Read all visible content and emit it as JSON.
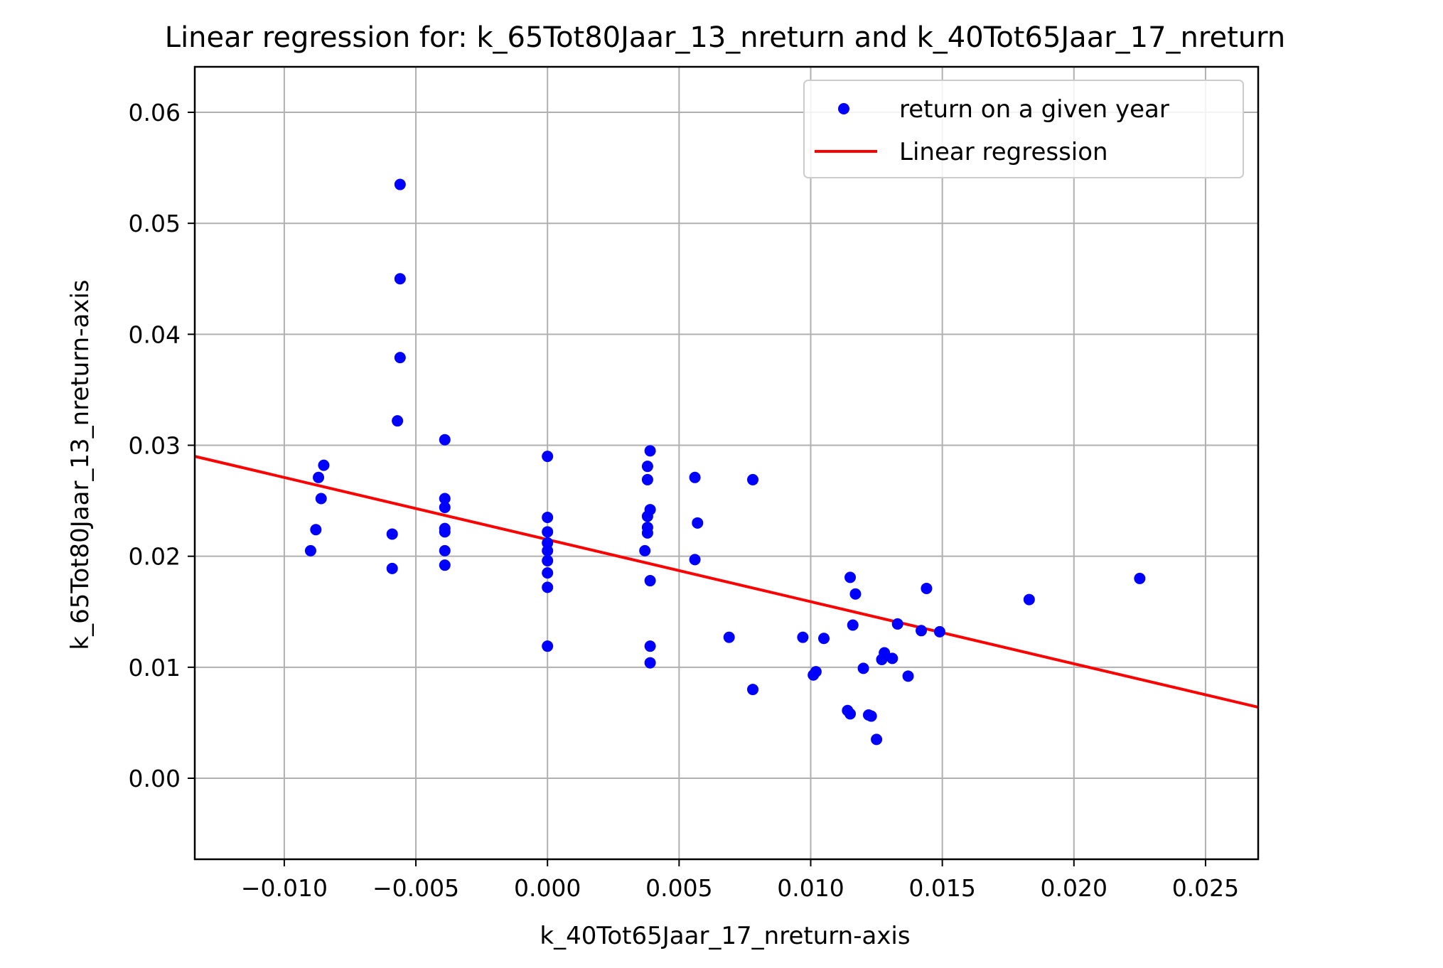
{
  "chart_data": {
    "type": "scatter",
    "title": "Linear regression for: k_65Tot80Jaar_13_nreturn and k_40Tot65Jaar_17_nreturn",
    "xlabel": "k_40Tot65Jaar_17_nreturn-axis",
    "ylabel": "k_65Tot80Jaar_13_nreturn-axis",
    "xlim": [
      -0.0134,
      0.027
    ],
    "ylim": [
      -0.0073,
      0.0641
    ],
    "xticks": [
      -0.01,
      -0.005,
      0.0,
      0.005,
      0.01,
      0.015,
      0.02,
      0.025
    ],
    "xtick_labels": [
      "−0.010",
      "−0.005",
      "0.000",
      "0.005",
      "0.010",
      "0.015",
      "0.020",
      "0.025"
    ],
    "yticks": [
      0.0,
      0.01,
      0.02,
      0.03,
      0.04,
      0.05,
      0.06
    ],
    "ytick_labels": [
      "0.00",
      "0.01",
      "0.02",
      "0.03",
      "0.04",
      "0.05",
      "0.06"
    ],
    "grid": true,
    "legend_position": "top-right",
    "series": [
      {
        "name": "return on a given year",
        "kind": "scatter",
        "color": "#0000ff",
        "points": [
          [
            -0.0056,
            0.0535
          ],
          [
            -0.0056,
            0.045
          ],
          [
            -0.0056,
            0.0379
          ],
          [
            -0.0057,
            0.0322
          ],
          [
            -0.0039,
            0.0305
          ],
          [
            -0.0039,
            0.0252
          ],
          [
            -0.0039,
            0.0244
          ],
          [
            -0.0039,
            0.0225
          ],
          [
            -0.0039,
            0.0222
          ],
          [
            -0.0039,
            0.0205
          ],
          [
            -0.0039,
            0.0192
          ],
          [
            -0.0059,
            0.022
          ],
          [
            -0.0059,
            0.0189
          ],
          [
            -0.0085,
            0.0282
          ],
          [
            -0.0087,
            0.0271
          ],
          [
            -0.0086,
            0.0252
          ],
          [
            -0.0088,
            0.0224
          ],
          [
            -0.009,
            0.0205
          ],
          [
            0.0,
            0.029
          ],
          [
            0.0,
            0.0235
          ],
          [
            0.0,
            0.0222
          ],
          [
            0.0,
            0.0212
          ],
          [
            0.0,
            0.0205
          ],
          [
            0.0,
            0.0196
          ],
          [
            0.0,
            0.0185
          ],
          [
            0.0,
            0.0172
          ],
          [
            0.0,
            0.0119
          ],
          [
            0.0039,
            0.0295
          ],
          [
            0.0038,
            0.0281
          ],
          [
            0.0038,
            0.0269
          ],
          [
            0.0039,
            0.0242
          ],
          [
            0.0038,
            0.0236
          ],
          [
            0.0038,
            0.0226
          ],
          [
            0.0038,
            0.0221
          ],
          [
            0.0037,
            0.0205
          ],
          [
            0.0039,
            0.0178
          ],
          [
            0.0039,
            0.0119
          ],
          [
            0.0039,
            0.0104
          ],
          [
            0.0056,
            0.0271
          ],
          [
            0.0057,
            0.023
          ],
          [
            0.0056,
            0.0197
          ],
          [
            0.0069,
            0.0127
          ],
          [
            0.0078,
            0.0269
          ],
          [
            0.0078,
            0.008
          ],
          [
            0.0097,
            0.0127
          ],
          [
            0.0101,
            0.0093
          ],
          [
            0.0102,
            0.0096
          ],
          [
            0.0105,
            0.0126
          ],
          [
            0.0115,
            0.0181
          ],
          [
            0.0116,
            0.0138
          ],
          [
            0.0117,
            0.0166
          ],
          [
            0.0114,
            0.0061
          ],
          [
            0.0115,
            0.0058
          ],
          [
            0.012,
            0.0099
          ],
          [
            0.0122,
            0.0057
          ],
          [
            0.0123,
            0.0056
          ],
          [
            0.0125,
            0.0035
          ],
          [
            0.0127,
            0.0107
          ],
          [
            0.0128,
            0.0113
          ],
          [
            0.0131,
            0.0108
          ],
          [
            0.0133,
            0.0139
          ],
          [
            0.0137,
            0.0092
          ],
          [
            0.0142,
            0.0133
          ],
          [
            0.0144,
            0.0171
          ],
          [
            0.0149,
            0.0132
          ],
          [
            0.0183,
            0.0161
          ],
          [
            0.0225,
            0.018
          ]
        ]
      },
      {
        "name": "Linear regression",
        "kind": "line",
        "color": "#ff0000",
        "points": [
          [
            -0.0134,
            0.029
          ],
          [
            0.027,
            0.0064
          ]
        ]
      }
    ]
  }
}
